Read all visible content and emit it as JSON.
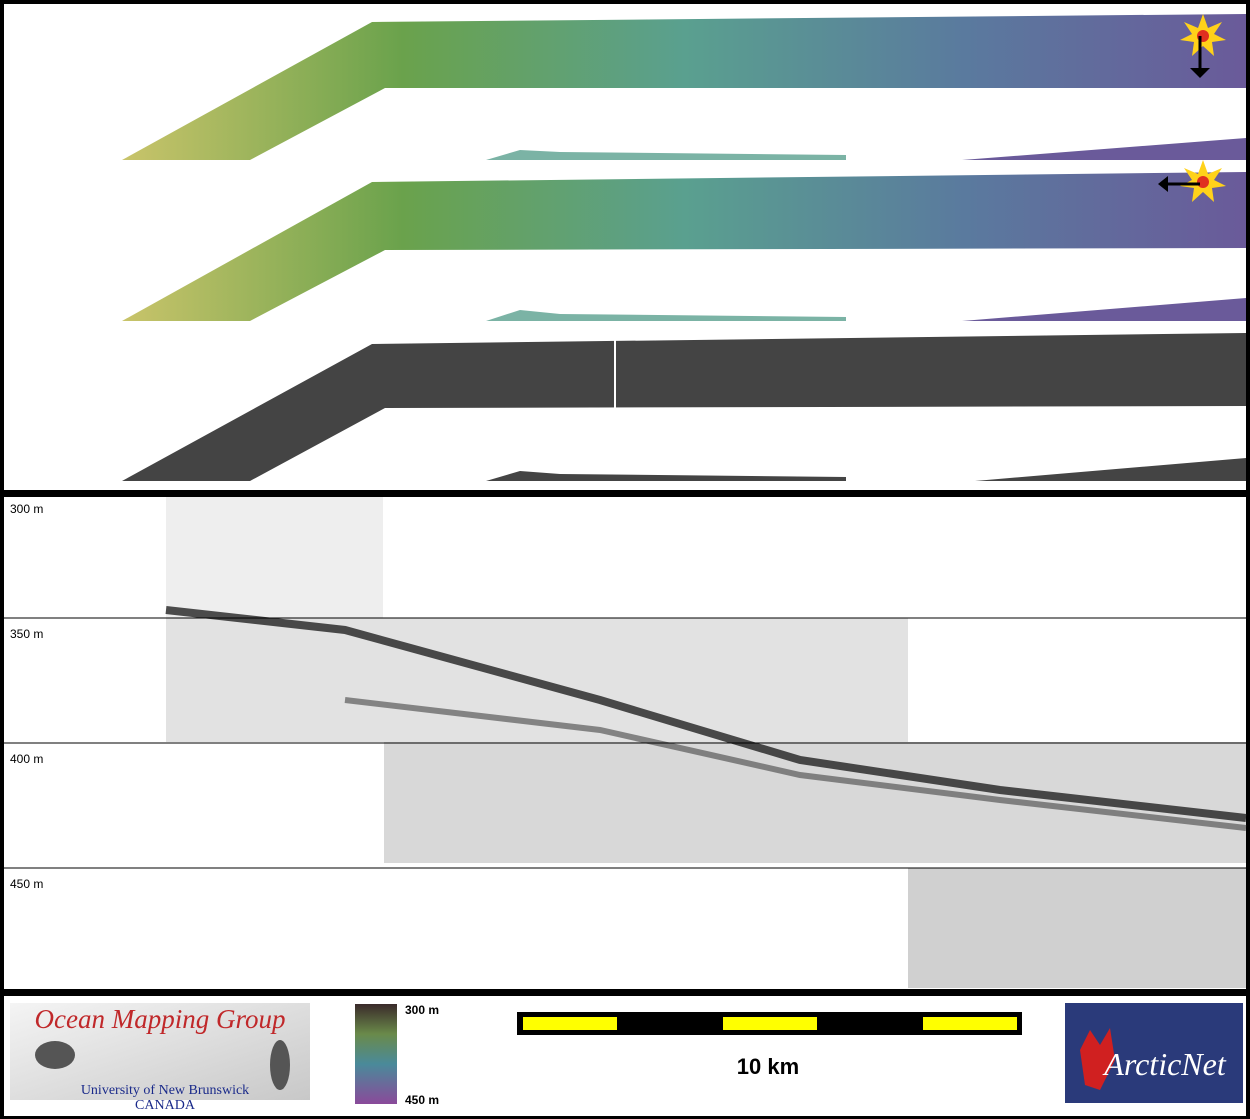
{
  "profile": {
    "depth_labels": [
      "300 m",
      "350 m",
      "400 m",
      "450 m"
    ]
  },
  "footer": {
    "logo": {
      "title": "Ocean Mapping Group",
      "institution": "University of New Brunswick",
      "country": "CANADA"
    },
    "color_scale": {
      "top": "300 m",
      "bottom": "450 m"
    },
    "scale_bar": {
      "label": "10 km"
    },
    "partner_logo": {
      "text": "ArcticNet"
    }
  }
}
